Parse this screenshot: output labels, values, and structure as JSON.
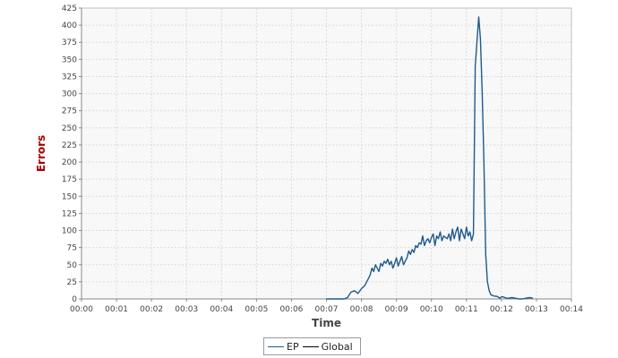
{
  "chart_data": {
    "type": "line",
    "title": "",
    "xlabel": "Time",
    "ylabel": "Errors",
    "grid": true,
    "legend_position": "bottom",
    "xlim": [
      0,
      14
    ],
    "ylim": [
      0,
      425
    ],
    "x_ticks": [
      "00:00",
      "00:01",
      "00:02",
      "00:03",
      "00:04",
      "00:05",
      "00:06",
      "00:07",
      "00:08",
      "00:09",
      "00:10",
      "00:11",
      "00:12",
      "00:13",
      "00:14"
    ],
    "y_ticks": [
      0,
      25,
      50,
      75,
      100,
      125,
      150,
      175,
      200,
      225,
      250,
      275,
      300,
      325,
      350,
      375,
      400,
      425
    ],
    "colors": {
      "EP": "#1f5a8c",
      "Global": "#000000",
      "grid": "#dcdcdc",
      "plot_bg": "#f8f8f8"
    },
    "series": [
      {
        "name": "EP",
        "x_unit": "minutes",
        "x": [
          7.0,
          7.2,
          7.4,
          7.5,
          7.6,
          7.7,
          7.8,
          7.9,
          8.0,
          8.1,
          8.15,
          8.2,
          8.25,
          8.3,
          8.35,
          8.4,
          8.5,
          8.55,
          8.6,
          8.65,
          8.7,
          8.75,
          8.8,
          8.85,
          8.9,
          8.95,
          9.0,
          9.05,
          9.1,
          9.15,
          9.2,
          9.3,
          9.35,
          9.4,
          9.45,
          9.5,
          9.55,
          9.6,
          9.65,
          9.7,
          9.75,
          9.8,
          9.85,
          9.9,
          9.95,
          10.0,
          10.05,
          10.1,
          10.15,
          10.2,
          10.25,
          10.3,
          10.35,
          10.4,
          10.45,
          10.5,
          10.55,
          10.6,
          10.65,
          10.7,
          10.75,
          10.8,
          10.85,
          10.9,
          10.95,
          11.0,
          11.05,
          11.1,
          11.15,
          11.2,
          11.25,
          11.3,
          11.35,
          11.4,
          11.45,
          11.5,
          11.55,
          11.6,
          11.65,
          11.7,
          11.75,
          11.8,
          11.85,
          11.9,
          11.95,
          12.0,
          12.05,
          12.1,
          12.15,
          12.2,
          12.3,
          12.4,
          12.5,
          12.6,
          12.7,
          12.8,
          12.9
        ],
        "y": [
          0,
          0,
          0,
          0,
          2,
          10,
          12,
          8,
          15,
          20,
          25,
          30,
          35,
          45,
          40,
          50,
          40,
          52,
          48,
          55,
          52,
          58,
          50,
          55,
          45,
          52,
          60,
          48,
          55,
          62,
          50,
          60,
          70,
          65,
          72,
          68,
          78,
          75,
          82,
          80,
          92,
          78,
          85,
          88,
          82,
          90,
          95,
          78,
          92,
          88,
          98,
          85,
          92,
          90,
          88,
          95,
          85,
          102,
          88,
          98,
          105,
          85,
          102,
          95,
          88,
          105,
          92,
          98,
          85,
          95,
          340,
          375,
          412,
          380,
          300,
          200,
          65,
          25,
          12,
          6,
          5,
          4,
          4,
          3,
          1,
          3,
          3,
          2,
          1,
          1,
          2,
          1,
          0,
          0,
          1,
          2,
          1
        ]
      },
      {
        "name": "Global",
        "x": [],
        "y": []
      }
    ]
  }
}
